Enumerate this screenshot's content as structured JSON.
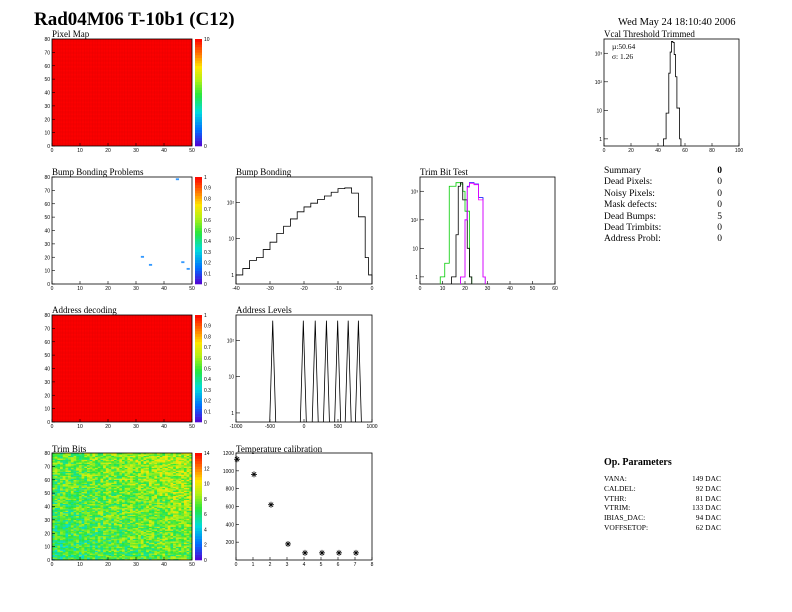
{
  "header": {
    "title": "Rad04M06 T-10b1 (C12)",
    "date": "Wed May 24 18:10:40 2006"
  },
  "panels": {
    "pixel_map": {
      "title": "Pixel Map"
    },
    "vcal": {
      "title": "Vcal Threshold Trimmed",
      "mu": "µ:50.64",
      "sigma": "σ: 1.26"
    },
    "bump_problems": {
      "title": "Bump Bonding Problems"
    },
    "bump_bonding": {
      "title": "Bump Bonding"
    },
    "trim_bit": {
      "title": "Trim Bit Test"
    },
    "address_decoding": {
      "title": "Address decoding"
    },
    "address_levels": {
      "title": "Address Levels"
    },
    "trim_bits": {
      "title": "Trim Bits"
    },
    "temperature": {
      "title": "Temperature calibration"
    }
  },
  "summary": {
    "header_label": "Summary",
    "header_value": "0",
    "rows": [
      {
        "label": "Dead Pixels:",
        "value": "0"
      },
      {
        "label": "Noisy Pixels:",
        "value": "0"
      },
      {
        "label": "Mask defects:",
        "value": "0"
      },
      {
        "label": "Dead Bumps:",
        "value": "5"
      },
      {
        "label": "Dead Trimbits:",
        "value": "0"
      },
      {
        "label": "Address Probl:",
        "value": "0"
      }
    ]
  },
  "op_params": {
    "title": "Op. Parameters",
    "rows": [
      {
        "label": "VANA:",
        "value": "149 DAC"
      },
      {
        "label": "CALDEL:",
        "value": "92 DAC"
      },
      {
        "label": "VTHR:",
        "value": "81 DAC"
      },
      {
        "label": "VTRIM:",
        "value": "133 DAC"
      },
      {
        "label": "IBIAS_DAC:",
        "value": "94 DAC"
      },
      {
        "label": "VOFFSETOP:",
        "value": "62 DAC"
      }
    ]
  },
  "chart_data": [
    {
      "type": "heatmap",
      "id": "pixel_map",
      "title": "Pixel Map",
      "xlim": [
        0,
        52
      ],
      "ylim": [
        0,
        80
      ],
      "xticks": [
        "0",
        "10",
        "20",
        "30",
        "40",
        "50"
      ],
      "yticks": [
        "0",
        "10",
        "20",
        "30",
        "40",
        "50",
        "60",
        "70",
        "80"
      ],
      "fill": "uniform",
      "value": 10,
      "zlim": [
        0,
        10
      ]
    },
    {
      "type": "line",
      "id": "vcal",
      "title": "Vcal Threshold Trimmed",
      "log_y": true,
      "xlim": [
        0,
        100
      ],
      "xticks": [
        "0",
        "20",
        "40",
        "60",
        "80",
        "100"
      ],
      "yticks": [
        "1",
        "10",
        "10²",
        "10³"
      ],
      "x": [
        44,
        46,
        48,
        49,
        50,
        51,
        52,
        53,
        54,
        56
      ],
      "y": [
        1,
        8,
        200,
        1100,
        2600,
        2400,
        900,
        150,
        12,
        1
      ]
    },
    {
      "type": "heatmap",
      "id": "bump_problems",
      "title": "Bump Bonding Problems",
      "xlim": [
        0,
        52
      ],
      "ylim": [
        0,
        80
      ],
      "xticks": [
        "0",
        "10",
        "20",
        "30",
        "40",
        "50"
      ],
      "yticks": [
        "0",
        "10",
        "20",
        "30",
        "40",
        "50",
        "60",
        "70",
        "80"
      ],
      "zticks": [
        "0",
        "0.1",
        "0.2",
        "0.3",
        "0.4",
        "0.5",
        "0.6",
        "0.7",
        "0.8",
        "0.9",
        "1"
      ],
      "points": [
        {
          "x": 33,
          "y": 20
        },
        {
          "x": 36,
          "y": 14
        },
        {
          "x": 48,
          "y": 16
        },
        {
          "x": 50,
          "y": 11
        },
        {
          "x": 46,
          "y": 78
        }
      ]
    },
    {
      "type": "line",
      "id": "bump_bonding",
      "title": "Bump Bonding",
      "log_y": true,
      "xlim": [
        -40,
        0
      ],
      "xticks": [
        "-40",
        "-30",
        "-20",
        "-10",
        "0"
      ],
      "yticks": [
        "1",
        "10",
        "10²"
      ],
      "x": [
        -40,
        -38,
        -36,
        -34,
        -32,
        -30,
        -28,
        -26,
        -24,
        -22,
        -20,
        -18,
        -16,
        -14,
        -12,
        -10,
        -8,
        -6,
        -4,
        -2,
        -1
      ],
      "y": [
        1,
        1.5,
        2.5,
        3,
        5,
        8,
        14,
        22,
        35,
        55,
        75,
        95,
        120,
        150,
        190,
        240,
        250,
        180,
        40,
        3,
        1
      ]
    },
    {
      "type": "line",
      "id": "trim_bit",
      "title": "Trim Bit Test",
      "log_y": true,
      "xlim": [
        0,
        60
      ],
      "xticks": [
        "0",
        "10",
        "20",
        "30",
        "40",
        "50",
        "60"
      ],
      "yticks": [
        "1",
        "10",
        "10²",
        "10³"
      ],
      "series": [
        {
          "color": "#00cc00",
          "x": [
            9,
            11,
            13,
            16,
            18,
            19,
            20,
            22
          ],
          "y": [
            1,
            3,
            1500,
            2000,
            1800,
            1000,
            200,
            1
          ]
        },
        {
          "color": "#000000",
          "x": [
            14,
            16,
            17,
            18,
            19,
            21,
            22
          ],
          "y": [
            1,
            30,
            1500,
            2000,
            500,
            10,
            1
          ]
        },
        {
          "color": "#0000ff",
          "x": [
            18,
            20,
            21,
            22,
            24,
            26,
            28
          ],
          "y": [
            1,
            100,
            1500,
            2000,
            1800,
            600,
            1
          ]
        },
        {
          "color": "#ff00ff",
          "x": [
            18,
            20,
            21,
            22,
            24,
            26,
            28
          ],
          "y": [
            1,
            100,
            1400,
            1900,
            1700,
            500,
            1
          ]
        }
      ]
    },
    {
      "type": "heatmap",
      "id": "address_decoding",
      "title": "Address decoding",
      "xlim": [
        0,
        52
      ],
      "ylim": [
        0,
        80
      ],
      "xticks": [
        "0",
        "10",
        "20",
        "30",
        "40",
        "50"
      ],
      "yticks": [
        "0",
        "10",
        "20",
        "30",
        "40",
        "50",
        "60",
        "70",
        "80"
      ],
      "zticks": [
        "0",
        "0.1",
        "0.2",
        "0.3",
        "0.4",
        "0.5",
        "0.6",
        "0.7",
        "0.8",
        "0.9",
        "1"
      ],
      "fill": "uniform",
      "value": 1,
      "zlim": [
        0,
        1
      ]
    },
    {
      "type": "line",
      "id": "address_levels",
      "title": "Address Levels",
      "log_y": true,
      "xlim": [
        -1000,
        1000
      ],
      "xticks": [
        "-1000",
        "-500",
        "0",
        "500",
        "1000"
      ],
      "yticks": [
        "1",
        "10",
        "10²"
      ],
      "peaks": [
        -460,
        -10,
        165,
        330,
        495,
        650,
        800
      ],
      "peak_height": 350
    },
    {
      "type": "heatmap",
      "id": "trim_bits",
      "title": "Trim Bits",
      "xlim": [
        0,
        52
      ],
      "ylim": [
        0,
        80
      ],
      "xticks": [
        "0",
        "10",
        "20",
        "30",
        "40",
        "50"
      ],
      "yticks": [
        "0",
        "10",
        "20",
        "30",
        "40",
        "50",
        "60",
        "70",
        "80"
      ],
      "zticks": [
        "0",
        "2",
        "4",
        "6",
        "8",
        "10",
        "12",
        "14"
      ],
      "zlim": [
        0,
        14
      ],
      "fill": "noise",
      "mean": 7.5
    },
    {
      "type": "scatter",
      "id": "temperature",
      "title": "Temperature calibration",
      "marker": "asterisk",
      "xlim": [
        0,
        8
      ],
      "ylim": [
        0,
        1200
      ],
      "xticks": [
        "0",
        "1",
        "2",
        "3",
        "4",
        "5",
        "6",
        "7",
        "8"
      ],
      "yticks": [
        "200",
        "400",
        "600",
        "800",
        "1000",
        "1200"
      ],
      "x": [
        0,
        1,
        2,
        3,
        4,
        5,
        6,
        7
      ],
      "y": [
        1130,
        960,
        620,
        180,
        80,
        80,
        80,
        80
      ]
    }
  ]
}
